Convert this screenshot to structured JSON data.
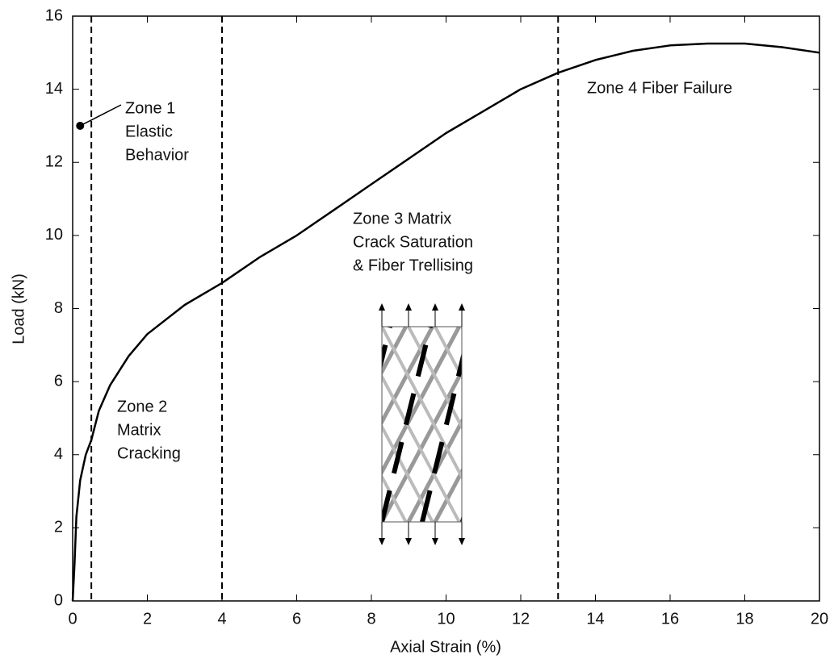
{
  "chart_data": {
    "type": "line",
    "x_label": "Axial Strain (%)",
    "y_label": "Load (kN)",
    "x": [
      0,
      0.05,
      0.1,
      0.2,
      0.35,
      0.5,
      0.7,
      1,
      1.5,
      2,
      3,
      4,
      5,
      6,
      7,
      8,
      9,
      10,
      11,
      12,
      13,
      14,
      15,
      16,
      17,
      18,
      19,
      20
    ],
    "values": [
      0,
      1,
      2.3,
      3.3,
      4,
      4.4,
      5.2,
      5.9,
      6.7,
      7.3,
      8.1,
      8.7,
      9.4,
      10,
      10.7,
      11.4,
      12.1,
      12.8,
      13.4,
      14,
      14.45,
      14.8,
      15.05,
      15.2,
      15.25,
      15.25,
      15.15,
      15
    ],
    "color": "#000000",
    "xlim": [
      0,
      20
    ],
    "xticks": [
      0,
      2,
      4,
      6,
      8,
      10,
      12,
      14,
      16,
      18,
      20
    ],
    "ylim": [
      0,
      16
    ],
    "yticks": [
      0,
      2,
      4,
      6,
      8,
      10,
      12,
      14,
      16
    ],
    "vlines": [
      0.5,
      4,
      13
    ],
    "annotations": [
      {
        "lines": [
          "Zone 1",
          "Elastic",
          "Behavior"
        ],
        "point": [
          0.2,
          13
        ]
      },
      {
        "lines": [
          "Zone 2",
          "Matrix",
          "Cracking"
        ]
      },
      {
        "lines": [
          "Zone 3 Matrix",
          "Crack Saturation",
          "& Fiber Trellising"
        ]
      },
      {
        "lines": [
          "Zone 4 Fiber Failure"
        ]
      }
    ]
  }
}
